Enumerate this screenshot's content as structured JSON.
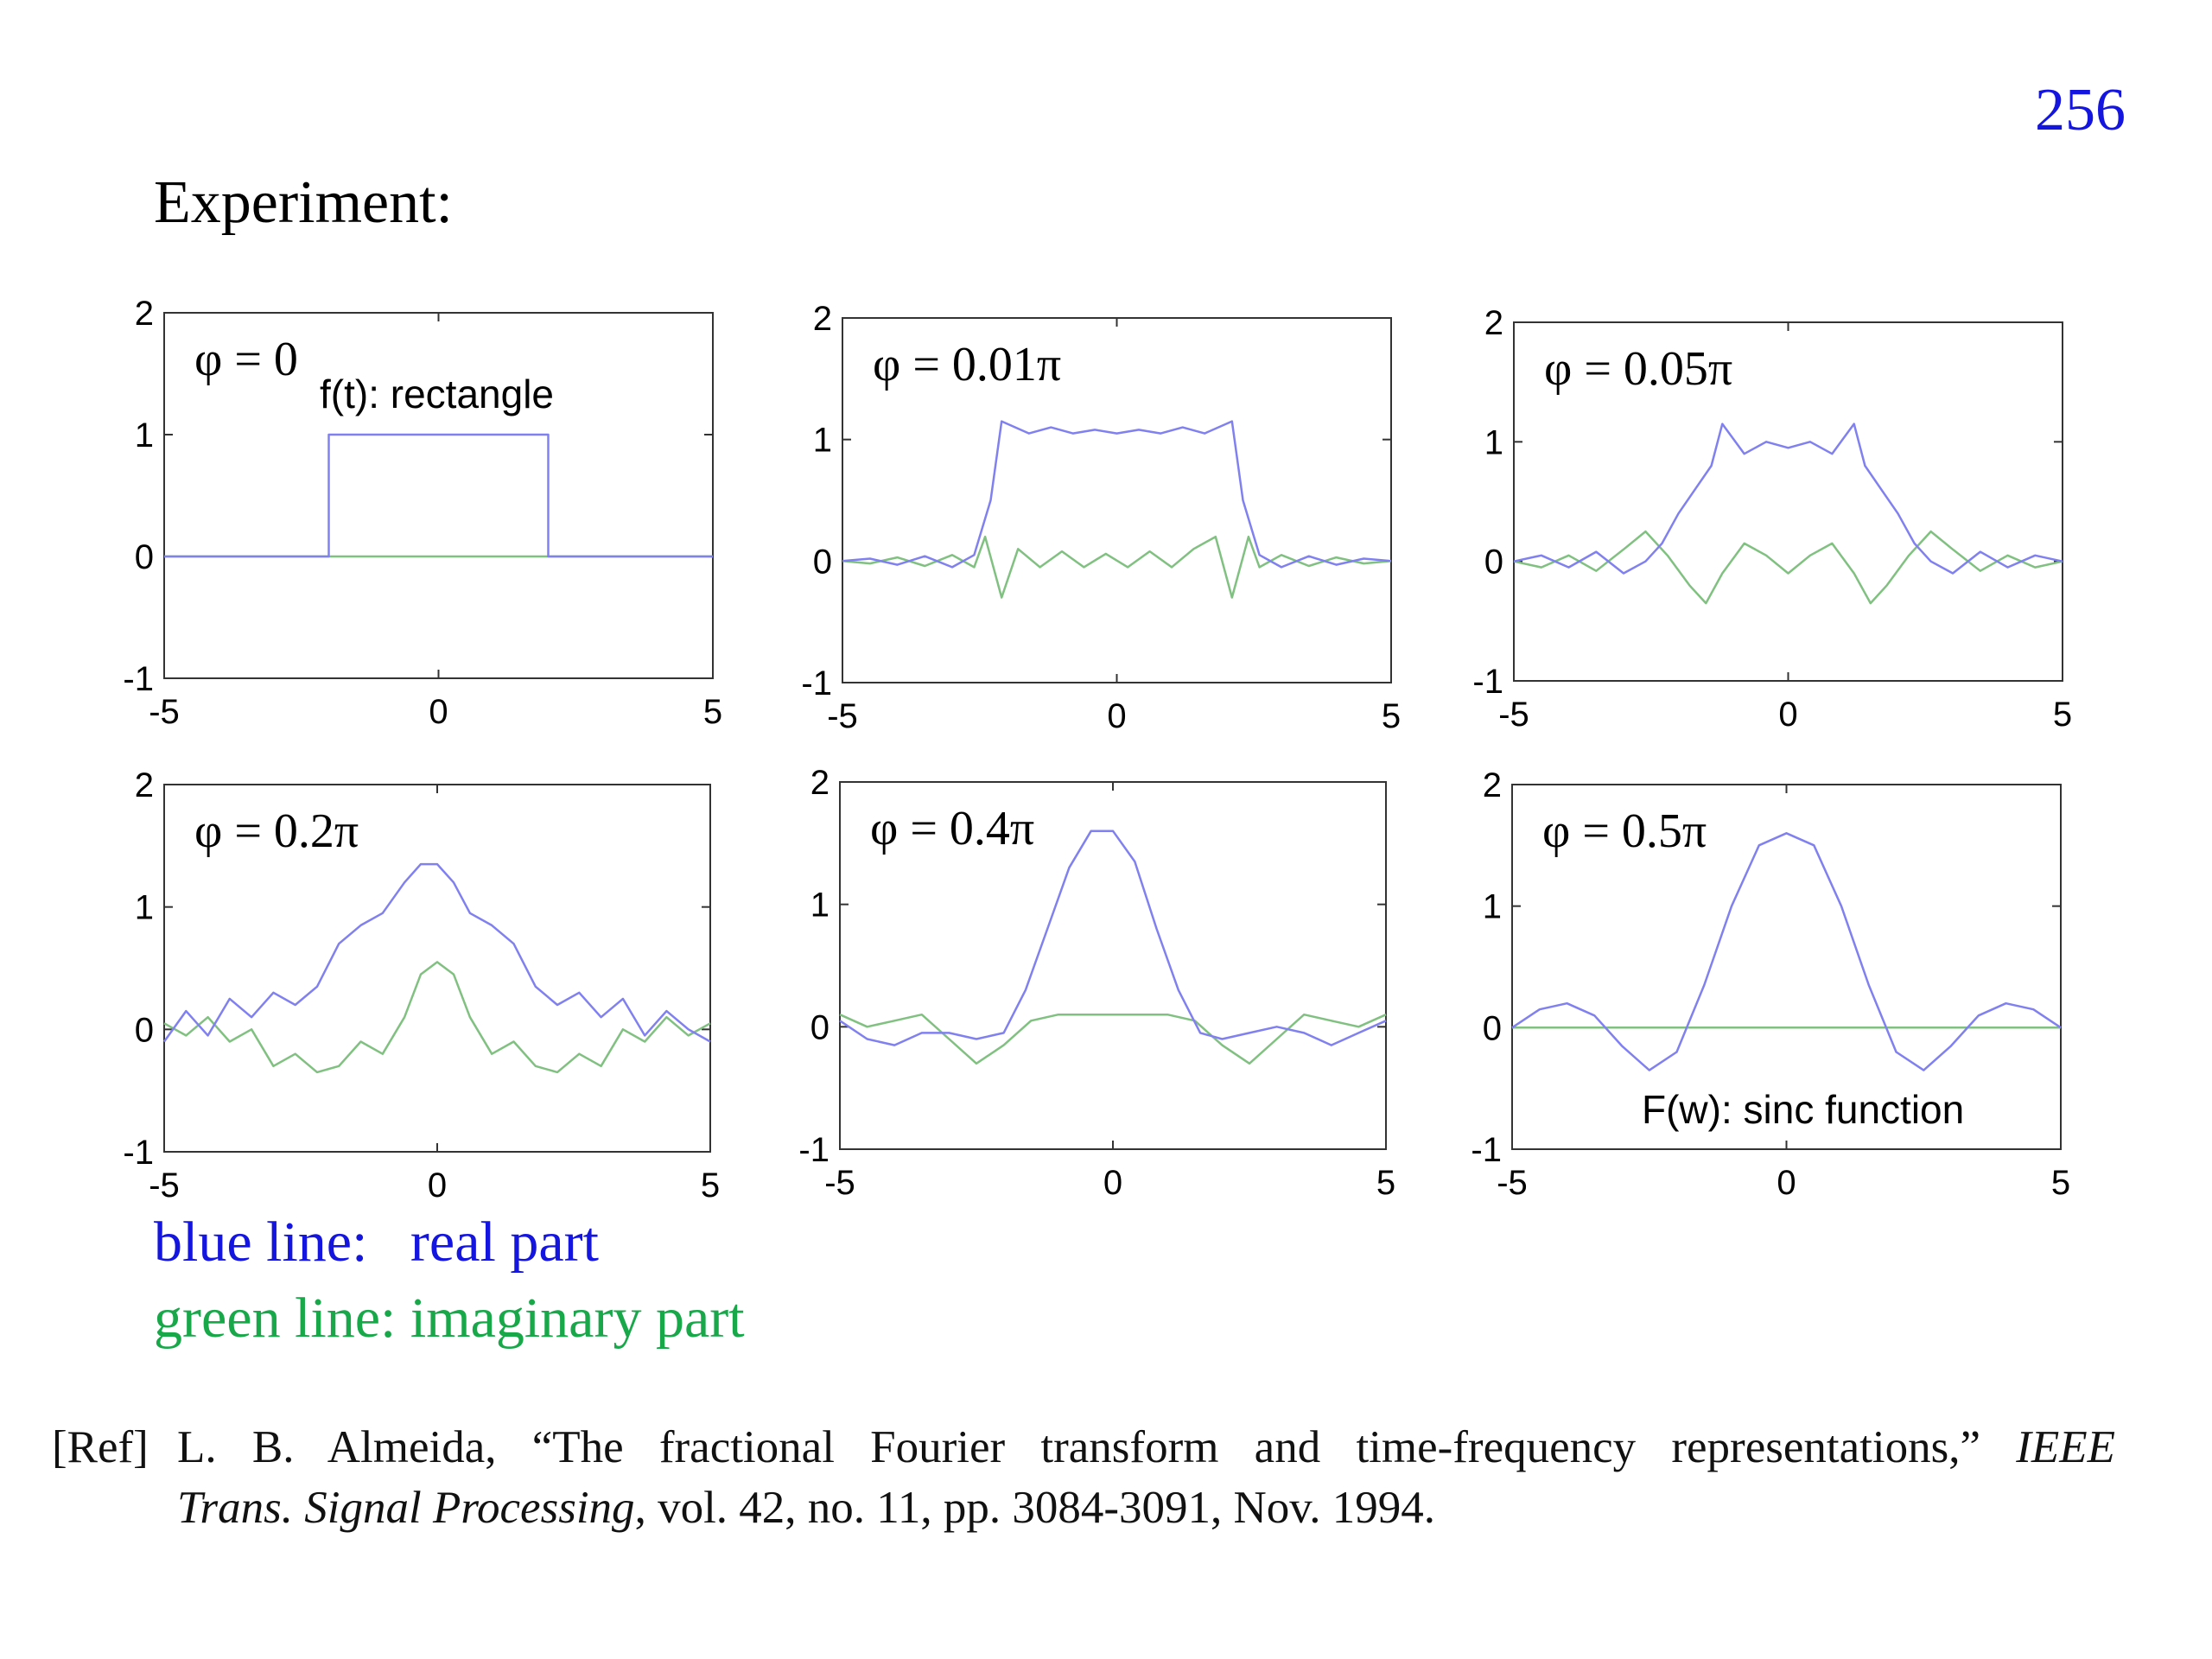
{
  "page_number": "256",
  "title": "Experiment:",
  "legend": {
    "blue": "blue line:   real part",
    "green": "green line: imaginary part",
    "blue_color": "#1515e0",
    "green_color": "#18a84a"
  },
  "reference": {
    "tag": "[Ref]",
    "text_start": "L. B. Almeida, “The fractional Fourier transform and time-frequency representations,” ",
    "journal_part1": "IEEE",
    "journal_part2": "Trans. Signal Processing",
    "text_end": ", vol. 42, no. 11, pp. 3084-3091, Nov. 1994."
  },
  "colors": {
    "real": "#8080f0",
    "imag": "#80c080",
    "axis": "#333333"
  },
  "chart_data": [
    {
      "type": "line",
      "title": "φ = 0",
      "annotation": "f(t): rectangle",
      "xlim": [
        -5,
        5
      ],
      "ylim": [
        -1,
        2
      ],
      "xticks": [
        -5,
        0,
        5
      ],
      "yticks": [
        -1,
        0,
        1,
        2
      ],
      "series": [
        {
          "name": "real part",
          "x": [
            -5,
            -2,
            -2,
            2,
            2,
            5
          ],
          "y": [
            0,
            0,
            1,
            1,
            0,
            0
          ]
        },
        {
          "name": "imaginary part",
          "x": [
            -5,
            5
          ],
          "y": [
            0,
            0
          ]
        }
      ]
    },
    {
      "type": "line",
      "title": "φ = 0.01π",
      "xlim": [
        -5,
        5
      ],
      "ylim": [
        -1,
        2
      ],
      "xticks": [
        -5,
        0,
        5
      ],
      "yticks": [
        -1,
        0,
        1,
        2
      ],
      "series": [
        {
          "name": "real part",
          "x": [
            -5,
            -4.5,
            -4,
            -3.5,
            -3,
            -2.6,
            -2.3,
            -2.1,
            -1.6,
            -1.2,
            -0.8,
            -0.4,
            0,
            0.4,
            0.8,
            1.2,
            1.6,
            2.1,
            2.3,
            2.6,
            3,
            3.5,
            4,
            4.5,
            5
          ],
          "y": [
            0,
            0.02,
            -0.03,
            0.04,
            -0.05,
            0.05,
            0.5,
            1.15,
            1.05,
            1.1,
            1.05,
            1.08,
            1.05,
            1.08,
            1.05,
            1.1,
            1.05,
            1.15,
            0.5,
            0.05,
            -0.05,
            0.04,
            -0.03,
            0.02,
            0
          ]
        },
        {
          "name": "imaginary part",
          "x": [
            -5,
            -4.5,
            -4,
            -3.5,
            -3,
            -2.6,
            -2.4,
            -2.1,
            -1.8,
            -1.4,
            -1,
            -0.6,
            -0.2,
            0.2,
            0.6,
            1,
            1.4,
            1.8,
            2.1,
            2.4,
            2.6,
            3,
            3.5,
            4,
            4.5,
            5
          ],
          "y": [
            0,
            -0.02,
            0.03,
            -0.04,
            0.05,
            -0.05,
            0.2,
            -0.3,
            0.1,
            -0.05,
            0.08,
            -0.05,
            0.06,
            -0.05,
            0.08,
            -0.05,
            0.1,
            0.2,
            -0.3,
            0.2,
            -0.05,
            0.05,
            -0.04,
            0.03,
            -0.02,
            0
          ]
        }
      ]
    },
    {
      "type": "line",
      "title": "φ = 0.05π",
      "xlim": [
        -5,
        5
      ],
      "ylim": [
        -1,
        2
      ],
      "xticks": [
        -5,
        0,
        5
      ],
      "yticks": [
        -1,
        0,
        1,
        2
      ],
      "series": [
        {
          "name": "real part",
          "x": [
            -5,
            -4.5,
            -4,
            -3.5,
            -3,
            -2.6,
            -2.3,
            -2,
            -1.7,
            -1.4,
            -1.2,
            -0.8,
            -0.4,
            0,
            0.4,
            0.8,
            1.2,
            1.4,
            1.7,
            2,
            2.3,
            2.6,
            3,
            3.5,
            4,
            4.5,
            5
          ],
          "y": [
            0,
            0.05,
            -0.05,
            0.08,
            -0.1,
            0,
            0.15,
            0.4,
            0.6,
            0.8,
            1.15,
            0.9,
            1.0,
            0.95,
            1.0,
            0.9,
            1.15,
            0.8,
            0.6,
            0.4,
            0.15,
            0,
            -0.1,
            0.08,
            -0.05,
            0.05,
            0
          ]
        },
        {
          "name": "imaginary part",
          "x": [
            -5,
            -4.5,
            -4,
            -3.5,
            -3,
            -2.6,
            -2.2,
            -1.8,
            -1.5,
            -1.2,
            -0.8,
            -0.4,
            0,
            0.4,
            0.8,
            1.2,
            1.5,
            1.8,
            2.2,
            2.6,
            3,
            3.5,
            4,
            4.5,
            5
          ],
          "y": [
            0,
            -0.05,
            0.05,
            -0.08,
            0.1,
            0.25,
            0.05,
            -0.2,
            -0.35,
            -0.1,
            0.15,
            0.05,
            -0.1,
            0.05,
            0.15,
            -0.1,
            -0.35,
            -0.2,
            0.05,
            0.25,
            0.1,
            -0.08,
            0.05,
            -0.05,
            0
          ]
        }
      ]
    },
    {
      "type": "line",
      "title": "φ = 0.2π",
      "xlim": [
        -5,
        5
      ],
      "ylim": [
        -1,
        2
      ],
      "xticks": [
        -5,
        0,
        5
      ],
      "yticks": [
        -1,
        0,
        1,
        2
      ],
      "series": [
        {
          "name": "real part",
          "x": [
            -5,
            -4.6,
            -4.2,
            -3.8,
            -3.4,
            -3,
            -2.6,
            -2.2,
            -1.8,
            -1.4,
            -1,
            -0.6,
            -0.3,
            0,
            0.3,
            0.6,
            1,
            1.4,
            1.8,
            2.2,
            2.6,
            3,
            3.4,
            3.8,
            4.2,
            4.6,
            5
          ],
          "y": [
            -0.1,
            0.15,
            -0.05,
            0.25,
            0.1,
            0.3,
            0.2,
            0.35,
            0.7,
            0.85,
            0.95,
            1.2,
            1.35,
            1.35,
            1.2,
            0.95,
            0.85,
            0.7,
            0.35,
            0.2,
            0.3,
            0.1,
            0.25,
            -0.05,
            0.15,
            0,
            -0.1
          ]
        },
        {
          "name": "imaginary part",
          "x": [
            -5,
            -4.6,
            -4.2,
            -3.8,
            -3.4,
            -3,
            -2.6,
            -2.2,
            -1.8,
            -1.4,
            -1,
            -0.6,
            -0.3,
            0,
            0.3,
            0.6,
            1,
            1.4,
            1.8,
            2.2,
            2.6,
            3,
            3.4,
            3.8,
            4.2,
            4.6,
            5
          ],
          "y": [
            0.05,
            -0.05,
            0.1,
            -0.1,
            0,
            -0.3,
            -0.2,
            -0.35,
            -0.3,
            -0.1,
            -0.2,
            0.1,
            0.45,
            0.55,
            0.45,
            0.1,
            -0.2,
            -0.1,
            -0.3,
            -0.35,
            -0.2,
            -0.3,
            0,
            -0.1,
            0.1,
            -0.05,
            0.05
          ]
        }
      ]
    },
    {
      "type": "line",
      "title": "φ = 0.4π",
      "xlim": [
        -5,
        5
      ],
      "ylim": [
        -1,
        2
      ],
      "xticks": [
        -5,
        0,
        5
      ],
      "yticks": [
        -1,
        0,
        1,
        2
      ],
      "series": [
        {
          "name": "real part",
          "x": [
            -5,
            -4.5,
            -4,
            -3.5,
            -3,
            -2.5,
            -2,
            -1.6,
            -1.2,
            -0.8,
            -0.4,
            0,
            0.4,
            0.8,
            1.2,
            1.6,
            2,
            2.5,
            3,
            3.5,
            4,
            4.5,
            5
          ],
          "y": [
            0.05,
            -0.1,
            -0.15,
            -0.05,
            -0.05,
            -0.1,
            -0.05,
            0.3,
            0.8,
            1.3,
            1.6,
            1.6,
            1.35,
            0.8,
            0.3,
            -0.05,
            -0.1,
            -0.05,
            0,
            -0.05,
            -0.15,
            -0.05,
            0.05
          ]
        },
        {
          "name": "imaginary part",
          "x": [
            -5,
            -4.5,
            -4,
            -3.5,
            -3,
            -2.5,
            -2,
            -1.5,
            -1,
            -0.5,
            0,
            0.5,
            1,
            1.5,
            2,
            2.5,
            3,
            3.5,
            4,
            4.5,
            5
          ],
          "y": [
            0.1,
            0,
            0.05,
            0.1,
            -0.1,
            -0.3,
            -0.15,
            0.05,
            0.1,
            0.1,
            0.1,
            0.1,
            0.1,
            0.05,
            -0.15,
            -0.3,
            -0.1,
            0.1,
            0.05,
            0,
            0.1
          ]
        }
      ]
    },
    {
      "type": "line",
      "title": "φ = 0.5π",
      "annotation": "F(w): sinc function",
      "xlim": [
        -5,
        5
      ],
      "ylim": [
        -1,
        2
      ],
      "xticks": [
        -5,
        0,
        5
      ],
      "yticks": [
        -1,
        0,
        1,
        2
      ],
      "series": [
        {
          "name": "real part",
          "x": [
            -5,
            -4.5,
            -4,
            -3.5,
            -3,
            -2.5,
            -2,
            -1.5,
            -1,
            -0.5,
            0,
            0.5,
            1,
            1.5,
            2,
            2.5,
            3,
            3.5,
            4,
            4.5,
            5
          ],
          "y": [
            0,
            0.15,
            0.2,
            0.1,
            -0.15,
            -0.35,
            -0.2,
            0.35,
            1.0,
            1.5,
            1.6,
            1.5,
            1.0,
            0.35,
            -0.2,
            -0.35,
            -0.15,
            0.1,
            0.2,
            0.15,
            0
          ]
        },
        {
          "name": "imaginary part",
          "x": [
            -5,
            5
          ],
          "y": [
            0,
            0
          ]
        }
      ]
    }
  ]
}
